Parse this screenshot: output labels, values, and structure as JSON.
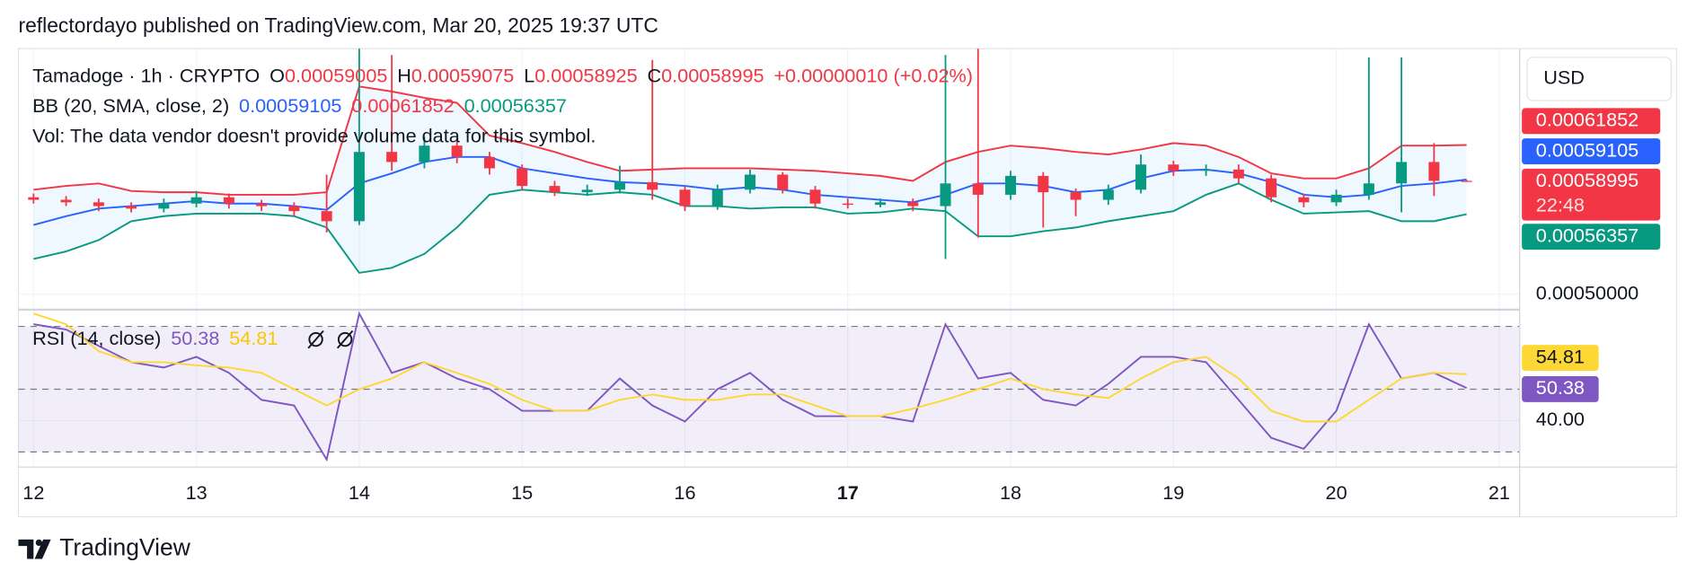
{
  "header": {
    "text": "reflectordayo published on TradingView.com, Mar 20, 2025 19:37 UTC"
  },
  "footer": {
    "brand": "TradingView"
  },
  "chart_data": [
    {
      "type": "candlestick",
      "title": "Tamadoge · 1h · CRYPTO",
      "ohlc_labels": [
        "O",
        "H",
        "L",
        "C"
      ],
      "change": "+0.00000010 (+0.02%)",
      "legend_color": "#f23645",
      "up_color": "#089981",
      "down_color": "#f23645",
      "volume_note": "Vol: The data vendor doesn't provide volume data for this symbol.",
      "currency": "USD",
      "countdown": "22:48",
      "x": [
        12.0,
        12.2,
        12.4,
        12.6,
        12.8,
        13.0,
        13.2,
        13.4,
        13.6,
        13.8,
        14.0,
        14.2,
        14.4,
        14.6,
        14.8,
        15.0,
        15.2,
        15.4,
        15.6,
        15.8,
        16.0,
        16.2,
        16.4,
        16.6,
        16.8,
        17.0,
        17.2,
        17.4,
        17.6,
        17.8,
        18.0,
        18.2,
        18.4,
        18.6,
        18.8,
        19.0,
        19.2,
        19.4,
        19.6,
        19.8,
        20.0,
        20.2,
        20.4,
        20.6,
        20.8
      ],
      "open": [
        0.000577,
        0.000575,
        0.000573,
        0.00057,
        0.000568,
        0.000572,
        0.000577,
        0.000572,
        0.00057,
        0.000566,
        0.000558,
        0.000613,
        0.000605,
        0.000618,
        0.000609,
        0.0006,
        0.000586,
        0.000581,
        0.000583,
        0.000589,
        0.000583,
        0.00057,
        0.000583,
        0.000595,
        0.000583,
        0.000572,
        0.000571,
        0.000573,
        0.00057,
        0.000588,
        0.000579,
        0.000594,
        0.000581,
        0.000575,
        0.000583,
        0.000603,
        0.000598,
        0.000599,
        0.000592,
        0.000577,
        0.000573,
        0.000579,
        0.000588,
        0.000605,
        0.00059005
      ],
      "high": [
        0.00058,
        0.000578,
        0.000576,
        0.000573,
        0.000576,
        0.000582,
        0.00058,
        0.000575,
        0.000573,
        0.000595,
        0.000695,
        0.00069,
        0.000625,
        0.000622,
        0.000613,
        0.000603,
        0.00059,
        0.000587,
        0.000602,
        0.000686,
        0.000586,
        0.000587,
        0.000599,
        0.000597,
        0.000586,
        0.000576,
        0.000576,
        0.000576,
        0.00069,
        0.000695,
        0.000598,
        0.000597,
        0.000584,
        0.000587,
        0.000611,
        0.000606,
        0.000603,
        0.000603,
        0.000595,
        0.00058,
        0.000583,
        0.000688,
        0.000688,
        0.00062,
        0.00059075
      ],
      "low": [
        0.000572,
        0.00057,
        0.000566,
        0.000565,
        0.000565,
        0.000569,
        0.000568,
        0.000566,
        0.000562,
        0.000549,
        0.000555,
        0.000598,
        0.0006,
        0.000604,
        0.000595,
        0.000583,
        0.000578,
        0.000578,
        0.00058,
        0.000575,
        0.000566,
        0.000567,
        0.00058,
        0.00058,
        0.000568,
        0.000568,
        0.000569,
        0.000566,
        0.000528,
        0.000545,
        0.000575,
        0.000553,
        0.000562,
        0.000571,
        0.00058,
        0.000594,
        0.000594,
        0.000588,
        0.000573,
        0.000569,
        0.00057,
        0.000575,
        0.000565,
        0.000578,
        0.00058925
      ],
      "close": [
        0.000575,
        0.000573,
        0.00057,
        0.000568,
        0.000572,
        0.000577,
        0.000572,
        0.00057,
        0.000566,
        0.000558,
        0.000613,
        0.000605,
        0.000618,
        0.000609,
        0.0006,
        0.000586,
        0.000581,
        0.000583,
        0.000589,
        0.000583,
        0.00057,
        0.000583,
        0.000595,
        0.000583,
        0.000572,
        0.000571,
        0.000573,
        0.00057,
        0.000588,
        0.000579,
        0.000594,
        0.000581,
        0.000575,
        0.000583,
        0.000603,
        0.000598,
        0.000599,
        0.000592,
        0.000577,
        0.000573,
        0.000579,
        0.000588,
        0.000605,
        0.00059005,
        0.00058995
      ],
      "bands": {
        "label": "BB (20, SMA, close, 2)",
        "fill": "#2196f3",
        "basis": {
          "color": "#2962ff",
          "values": [
            0.000555,
            0.000562,
            0.000568,
            0.00057,
            0.000572,
            0.000574,
            0.000572,
            0.000572,
            0.00057,
            0.000567,
            0.000588,
            0.000596,
            0.000605,
            0.000609,
            0.000609,
            0.0006,
            0.000596,
            0.000592,
            0.000589,
            0.000588,
            0.000586,
            0.000583,
            0.000585,
            0.000583,
            0.000579,
            0.000577,
            0.000575,
            0.000573,
            0.000579,
            0.000588,
            0.000588,
            0.000586,
            0.000581,
            0.000583,
            0.000592,
            0.000598,
            0.000599,
            0.000596,
            0.000589,
            0.000579,
            0.000577,
            0.000579,
            0.000586,
            0.000588,
            0.00059105
          ]
        },
        "upper": {
          "color": "#f23645",
          "values": [
            0.000583,
            0.000586,
            0.000588,
            0.000582,
            0.000581,
            0.000581,
            0.000579,
            0.000579,
            0.000579,
            0.000581,
            0.000665,
            0.000661,
            0.000656,
            0.000652,
            0.000626,
            0.00062,
            0.000613,
            0.000605,
            0.000598,
            0.000599,
            0.0006,
            0.0006,
            0.0006,
            0.000599,
            0.000598,
            0.000596,
            0.000594,
            0.00059,
            0.000605,
            0.000613,
            0.000618,
            0.000616,
            0.000613,
            0.000611,
            0.000615,
            0.00062,
            0.000618,
            0.000609,
            0.000596,
            0.000592,
            0.000592,
            0.0006,
            0.000618,
            0.000618,
            0.00061852
          ]
        },
        "lower": {
          "color": "#089981",
          "values": [
            0.000528,
            0.000534,
            0.000543,
            0.000558,
            0.000562,
            0.000564,
            0.000564,
            0.000564,
            0.000562,
            0.000553,
            0.000517,
            0.000521,
            0.000532,
            0.000553,
            0.000579,
            0.000583,
            0.000581,
            0.000579,
            0.000581,
            0.000579,
            0.00057,
            0.00057,
            0.000568,
            0.000569,
            0.000569,
            0.000564,
            0.000565,
            0.000568,
            0.000566,
            0.000546,
            0.000546,
            0.00055,
            0.000553,
            0.000558,
            0.000562,
            0.000566,
            0.000579,
            0.000588,
            0.000575,
            0.000564,
            0.000565,
            0.000566,
            0.000558,
            0.000558,
            0.00056357
          ]
        }
      },
      "xlim": [
        11.907,
        21.126
      ],
      "ylim": [
        0.000489,
        0.000695
      ],
      "yticks": [
        {
          "value": 0.0005,
          "label": "0.00050000"
        }
      ],
      "xticks": [
        12,
        13,
        14,
        15,
        16,
        17,
        18,
        19,
        20,
        21
      ],
      "highlight_xtick": 17,
      "grid": true
    },
    {
      "type": "line",
      "title": "RSI (14, close)",
      "x": [
        12.0,
        12.2,
        12.4,
        12.6,
        12.8,
        13.0,
        13.2,
        13.4,
        13.6,
        13.8,
        14.0,
        14.2,
        14.4,
        14.6,
        14.8,
        15.0,
        15.2,
        15.4,
        15.6,
        15.8,
        16.0,
        16.2,
        16.4,
        16.6,
        16.8,
        17.0,
        17.2,
        17.4,
        17.6,
        17.8,
        18.0,
        18.2,
        18.4,
        18.6,
        18.8,
        19.0,
        19.2,
        19.4,
        19.6,
        19.8,
        20.0,
        20.2,
        20.4,
        20.6,
        20.8
      ],
      "series": [
        {
          "color": "#7e57c2",
          "values": [
            70.7,
            69,
            63.8,
            58.6,
            56.9,
            60.3,
            55.2,
            46.6,
            44.8,
            27.6,
            74.1,
            55.2,
            58.6,
            53.4,
            50,
            43.1,
            43.1,
            43.1,
            53.4,
            44.8,
            39.7,
            50,
            55.2,
            46.6,
            41.4,
            41.4,
            41.4,
            39.7,
            70.7,
            53.4,
            55.2,
            46.6,
            44.8,
            51.7,
            60.3,
            60.3,
            58.6,
            46.6,
            34.5,
            31,
            43.1,
            70.7,
            53.4,
            55.2,
            50.38
          ]
        },
        {
          "color": "#fdd835",
          "values": [
            74.1,
            70.7,
            62.1,
            58.6,
            58.6,
            57.6,
            56.9,
            55.2,
            50,
            44.8,
            50,
            53.4,
            58.6,
            55.2,
            51.7,
            46.6,
            43.1,
            43.1,
            46.6,
            48.3,
            46.6,
            46.6,
            48.3,
            48.3,
            44.8,
            41.4,
            41.4,
            43.8,
            46.6,
            50,
            53.4,
            50,
            48.3,
            47.2,
            53.4,
            58.6,
            60.3,
            53.4,
            43.1,
            39.7,
            39.7,
            46.6,
            53.4,
            55.2,
            54.81
          ]
        }
      ],
      "levels": [
        70,
        50,
        30
      ],
      "band_fill": "#7e57c2",
      "xlim": [
        11.907,
        21.126
      ],
      "ylim": [
        25.2,
        74.8
      ],
      "yticks": [
        {
          "value": 40,
          "label": "40.00"
        }
      ],
      "grid": true
    }
  ]
}
